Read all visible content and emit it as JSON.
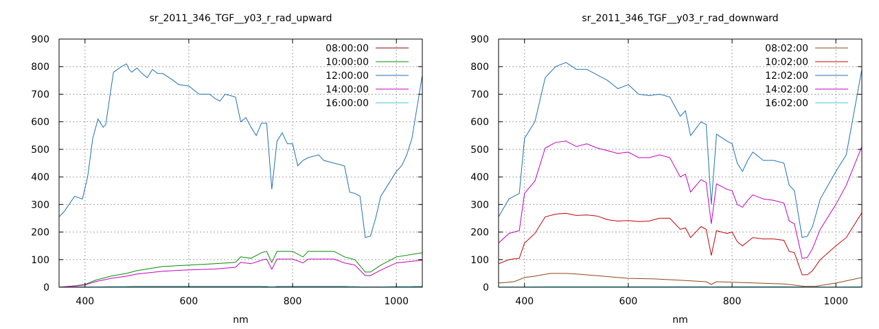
{
  "chart_data": [
    {
      "type": "line",
      "title": "sr_2011_346_TGF__y03_r_rad_upward",
      "xlabel": "nm",
      "ylabel": "",
      "xlim": [
        350,
        1050
      ],
      "ylim": [
        0,
        900
      ],
      "xticks": [
        400,
        600,
        800,
        1000
      ],
      "yticks": [
        0,
        100,
        200,
        300,
        400,
        500,
        600,
        700,
        800,
        900
      ],
      "grid": true,
      "legend_position": "top-right",
      "series": [
        {
          "name": "08:00:00",
          "color": "#8b0000",
          "x": [
            350,
            400,
            450,
            500,
            550,
            600,
            650,
            700,
            740,
            760,
            780,
            850,
            900,
            920,
            940,
            960,
            1000,
            1050
          ],
          "y": [
            0,
            1,
            2,
            3,
            3,
            3,
            3,
            3,
            3,
            1,
            3,
            3,
            3,
            2,
            1,
            1,
            2,
            3
          ]
        },
        {
          "name": "10:00:00",
          "color": "#008b00",
          "x": [
            350,
            380,
            400,
            420,
            450,
            480,
            500,
            550,
            600,
            650,
            690,
            700,
            720,
            740,
            750,
            760,
            770,
            800,
            820,
            830,
            850,
            880,
            900,
            920,
            940,
            950,
            970,
            1000,
            1050
          ],
          "y": [
            0,
            5,
            10,
            25,
            40,
            50,
            60,
            75,
            80,
            85,
            90,
            110,
            105,
            125,
            130,
            90,
            130,
            130,
            110,
            130,
            130,
            130,
            110,
            100,
            55,
            55,
            80,
            110,
            125
          ]
        },
        {
          "name": "12:00:00",
          "color": "#1e6fb5",
          "x": [
            350,
            360,
            380,
            395,
            405,
            415,
            425,
            435,
            440,
            450,
            455,
            470,
            480,
            485,
            490,
            500,
            510,
            520,
            530,
            540,
            550,
            570,
            580,
            600,
            620,
            640,
            650,
            660,
            670,
            680,
            690,
            700,
            710,
            720,
            730,
            740,
            750,
            760,
            770,
            780,
            790,
            800,
            810,
            820,
            830,
            850,
            860,
            900,
            910,
            920,
            930,
            940,
            950,
            960,
            970,
            980,
            1000,
            1010,
            1020,
            1030,
            1050
          ],
          "y": [
            255,
            275,
            330,
            320,
            400,
            540,
            610,
            580,
            590,
            720,
            780,
            800,
            810,
            790,
            780,
            795,
            775,
            760,
            790,
            775,
            775,
            750,
            735,
            730,
            700,
            700,
            685,
            675,
            700,
            695,
            690,
            600,
            615,
            580,
            550,
            595,
            595,
            355,
            530,
            560,
            520,
            520,
            440,
            460,
            470,
            480,
            460,
            440,
            345,
            340,
            330,
            180,
            185,
            250,
            330,
            360,
            420,
            440,
            480,
            540,
            770
          ]
        },
        {
          "name": "14:00:00",
          "color": "#c000c0",
          "x": [
            350,
            380,
            400,
            420,
            450,
            480,
            500,
            550,
            600,
            650,
            690,
            700,
            720,
            740,
            750,
            760,
            770,
            800,
            820,
            830,
            850,
            880,
            900,
            920,
            940,
            950,
            970,
            1000,
            1050
          ],
          "y": [
            0,
            4,
            8,
            20,
            32,
            40,
            48,
            58,
            63,
            66,
            72,
            90,
            85,
            98,
            102,
            65,
            102,
            102,
            88,
            102,
            102,
            102,
            88,
            80,
            42,
            42,
            62,
            88,
            98
          ]
        },
        {
          "name": "16:00:00",
          "color": "#40c8d8",
          "x": [
            350,
            400,
            450,
            500,
            550,
            600,
            650,
            700,
            750,
            760,
            770,
            850,
            900,
            940,
            960,
            1000,
            1050
          ],
          "y": [
            0,
            1,
            2,
            3,
            3,
            3,
            3,
            3,
            3,
            1,
            3,
            3,
            3,
            1,
            1,
            2,
            3
          ]
        }
      ]
    },
    {
      "type": "line",
      "title": "sr_2011_346_TGF__y03_r_rad_downward",
      "xlabel": "nm",
      "ylabel": "",
      "xlim": [
        350,
        1050
      ],
      "ylim": [
        0,
        900
      ],
      "xticks": [
        400,
        600,
        800,
        1000
      ],
      "yticks": [
        0,
        100,
        200,
        300,
        400,
        500,
        600,
        700,
        800,
        900
      ],
      "grid": true,
      "legend_position": "top-right",
      "series": [
        {
          "name": "08:02:00",
          "color": "#8b4513",
          "x": [
            350,
            380,
            400,
            420,
            450,
            480,
            500,
            550,
            600,
            650,
            700,
            750,
            760,
            770,
            800,
            850,
            900,
            940,
            960,
            1000,
            1050
          ],
          "y": [
            15,
            20,
            35,
            40,
            50,
            50,
            48,
            40,
            32,
            30,
            25,
            20,
            10,
            20,
            18,
            15,
            12,
            3,
            3,
            15,
            35
          ]
        },
        {
          "name": "10:02:00",
          "color": "#c00000",
          "x": [
            350,
            370,
            390,
            400,
            420,
            440,
            460,
            480,
            500,
            520,
            540,
            560,
            580,
            600,
            620,
            640,
            660,
            680,
            700,
            710,
            720,
            740,
            750,
            760,
            770,
            790,
            800,
            810,
            820,
            830,
            840,
            860,
            880,
            900,
            910,
            920,
            935,
            945,
            955,
            970,
            1000,
            1020,
            1050
          ],
          "y": [
            85,
            100,
            105,
            160,
            195,
            255,
            265,
            268,
            260,
            262,
            258,
            245,
            240,
            242,
            238,
            240,
            250,
            250,
            210,
            215,
            180,
            220,
            210,
            115,
            205,
            195,
            200,
            165,
            150,
            165,
            180,
            175,
            175,
            170,
            130,
            125,
            45,
            45,
            60,
            100,
            150,
            180,
            270
          ]
        },
        {
          "name": "12:02:00",
          "color": "#1e6fb5",
          "x": [
            350,
            370,
            390,
            400,
            420,
            440,
            460,
            480,
            500,
            520,
            540,
            560,
            580,
            600,
            620,
            640,
            660,
            680,
            700,
            710,
            720,
            740,
            750,
            760,
            770,
            790,
            800,
            810,
            820,
            830,
            840,
            860,
            880,
            900,
            910,
            920,
            935,
            945,
            955,
            970,
            1000,
            1020,
            1050
          ],
          "y": [
            255,
            320,
            340,
            540,
            600,
            760,
            800,
            815,
            790,
            790,
            770,
            750,
            720,
            735,
            700,
            695,
            700,
            690,
            620,
            640,
            550,
            600,
            590,
            300,
            555,
            530,
            520,
            450,
            420,
            460,
            490,
            460,
            460,
            450,
            370,
            350,
            180,
            185,
            220,
            320,
            420,
            480,
            790
          ]
        },
        {
          "name": "14:02:00",
          "color": "#c000c0",
          "x": [
            350,
            370,
            390,
            400,
            420,
            440,
            460,
            480,
            500,
            520,
            540,
            560,
            580,
            600,
            620,
            640,
            660,
            680,
            700,
            710,
            720,
            740,
            750,
            760,
            770,
            790,
            800,
            810,
            820,
            830,
            840,
            860,
            880,
            900,
            910,
            920,
            935,
            945,
            955,
            970,
            1000,
            1020,
            1050
          ],
          "y": [
            160,
            195,
            205,
            340,
            385,
            505,
            525,
            530,
            510,
            520,
            505,
            495,
            485,
            490,
            470,
            470,
            480,
            470,
            400,
            410,
            345,
            390,
            380,
            230,
            375,
            355,
            350,
            300,
            290,
            315,
            335,
            320,
            315,
            305,
            240,
            230,
            105,
            108,
            140,
            210,
            300,
            370,
            510
          ]
        },
        {
          "name": "16:02:00",
          "color": "#40c8d8",
          "x": [
            350,
            400,
            450,
            500,
            550,
            600,
            650,
            700,
            750,
            760,
            770,
            850,
            900,
            940,
            960,
            1000,
            1050
          ],
          "y": [
            1,
            1,
            2,
            2,
            2,
            2,
            2,
            2,
            2,
            1,
            2,
            2,
            2,
            1,
            1,
            1,
            2
          ]
        }
      ]
    }
  ]
}
